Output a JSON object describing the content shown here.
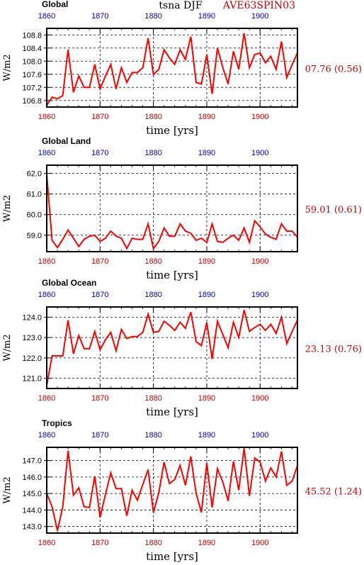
{
  "header": {
    "variable": "tsna DJF",
    "experiment": "AVE63SPIN03"
  },
  "colors": {
    "line": "#ff0000",
    "top_ticks": "#0000cc",
    "bottom_ticks": "#cc0000",
    "stat": "#cc0000",
    "axis": "#000000",
    "grid": "#000000"
  },
  "chart_data": [
    {
      "type": "line",
      "title": "Global",
      "ylabel": "W/m2",
      "xlabel": "time [yrs]",
      "stat": "07.76 (0.56)",
      "xlim": [
        1860,
        1907
      ],
      "ylim": [
        106.6,
        109.0
      ],
      "xticks": [
        1860,
        1870,
        1880,
        1890,
        1900
      ],
      "yticks": [
        106.8,
        107.2,
        107.6,
        108.0,
        108.4,
        108.8
      ],
      "ytick_labels": [
        "106.8",
        "107.2",
        "107.6",
        "108.0",
        "108.4",
        "108.8"
      ],
      "grid": true,
      "series": [
        {
          "x": [
            1860,
            1861,
            1862,
            1863,
            1864,
            1865,
            1866,
            1867,
            1868,
            1869,
            1870,
            1871,
            1872,
            1873,
            1874,
            1875,
            1876,
            1877,
            1878,
            1879,
            1880,
            1881,
            1882,
            1883,
            1884,
            1885,
            1886,
            1887,
            1888,
            1889,
            1890,
            1891,
            1892,
            1893,
            1894,
            1895,
            1896,
            1897,
            1898,
            1899,
            1900,
            1901,
            1902,
            1903,
            1904,
            1905,
            1906,
            1907
          ],
          "y": [
            106.65,
            106.9,
            106.85,
            106.95,
            108.35,
            107.05,
            107.55,
            107.2,
            107.2,
            107.9,
            107.15,
            107.55,
            107.9,
            107.15,
            107.8,
            107.35,
            107.65,
            107.65,
            107.8,
            108.7,
            107.6,
            107.75,
            108.35,
            108.1,
            107.9,
            108.35,
            108.05,
            108.75,
            107.35,
            107.3,
            108.2,
            107.0,
            108.4,
            107.8,
            107.3,
            108.3,
            107.75,
            108.85,
            107.8,
            108.2,
            108.25,
            107.95,
            108.15,
            107.75,
            108.6,
            107.5,
            107.9,
            108.25
          ]
        }
      ]
    },
    {
      "type": "line",
      "title": "Global Land",
      "ylabel": "W/m2",
      "xlabel": "time [yrs]",
      "stat": "59.01 (0.61)",
      "xlim": [
        1860,
        1907
      ],
      "ylim": [
        58.2,
        62.4
      ],
      "xticks": [
        1860,
        1870,
        1880,
        1890,
        1900
      ],
      "yticks": [
        59.0,
        60.0,
        61.0,
        62.0
      ],
      "ytick_labels": [
        "59.0",
        "60.0",
        "61.0",
        "62.0"
      ],
      "grid": true,
      "series": [
        {
          "x": [
            1860,
            1861,
            1862,
            1863,
            1864,
            1865,
            1866,
            1867,
            1868,
            1869,
            1870,
            1871,
            1872,
            1873,
            1874,
            1875,
            1876,
            1877,
            1878,
            1879,
            1880,
            1881,
            1882,
            1883,
            1884,
            1885,
            1886,
            1887,
            1888,
            1889,
            1890,
            1891,
            1892,
            1893,
            1894,
            1895,
            1896,
            1897,
            1898,
            1899,
            1900,
            1901,
            1902,
            1903,
            1904,
            1905,
            1906,
            1907
          ],
          "y": [
            61.95,
            58.75,
            58.4,
            58.8,
            59.25,
            58.85,
            58.45,
            58.8,
            58.95,
            59.0,
            58.7,
            58.85,
            59.2,
            58.95,
            58.85,
            58.35,
            58.85,
            58.8,
            58.8,
            59.55,
            58.35,
            58.7,
            59.35,
            58.95,
            58.95,
            59.55,
            59.2,
            59.1,
            58.75,
            58.85,
            58.65,
            59.55,
            58.7,
            58.65,
            58.85,
            59.0,
            58.75,
            59.35,
            58.65,
            59.7,
            59.4,
            59.05,
            58.9,
            58.8,
            59.55,
            59.2,
            59.2,
            58.9
          ]
        }
      ]
    },
    {
      "type": "line",
      "title": "Global Ocean",
      "ylabel": "W/m2",
      "xlabel": "time [yrs]",
      "stat": "23.13 (0.76)",
      "xlim": [
        1860,
        1907
      ],
      "ylim": [
        120.5,
        124.5
      ],
      "xticks": [
        1860,
        1870,
        1880,
        1890,
        1900
      ],
      "yticks": [
        121.0,
        122.0,
        123.0,
        124.0
      ],
      "ytick_labels": [
        "121.0",
        "122.0",
        "123.0",
        "124.0"
      ],
      "grid": true,
      "series": [
        {
          "x": [
            1860,
            1861,
            1862,
            1863,
            1864,
            1865,
            1866,
            1867,
            1868,
            1869,
            1870,
            1871,
            1872,
            1873,
            1874,
            1875,
            1876,
            1877,
            1878,
            1879,
            1880,
            1881,
            1882,
            1883,
            1884,
            1885,
            1886,
            1887,
            1888,
            1889,
            1890,
            1891,
            1892,
            1893,
            1894,
            1895,
            1896,
            1897,
            1898,
            1899,
            1900,
            1901,
            1902,
            1903,
            1904,
            1905,
            1906,
            1907
          ],
          "y": [
            120.65,
            122.1,
            122.1,
            122.1,
            123.85,
            122.2,
            123.1,
            122.45,
            122.45,
            123.3,
            122.4,
            122.9,
            123.25,
            122.35,
            123.4,
            122.95,
            123.05,
            123.05,
            123.25,
            124.15,
            123.25,
            123.3,
            123.8,
            123.6,
            123.35,
            123.75,
            123.45,
            124.25,
            122.8,
            122.6,
            123.75,
            121.95,
            123.8,
            123.15,
            122.5,
            123.75,
            123.0,
            124.35,
            123.3,
            123.5,
            123.65,
            123.35,
            123.65,
            123.2,
            124.0,
            122.7,
            123.3,
            123.85
          ]
        }
      ]
    },
    {
      "type": "line",
      "title": "Tropics",
      "ylabel": "W/m2",
      "xlabel": "time [yrs]",
      "stat": "45.52 (1.24)",
      "xlim": [
        1860,
        1907
      ],
      "ylim": [
        142.6,
        147.8
      ],
      "xticks": [
        1860,
        1870,
        1880,
        1890,
        1900
      ],
      "yticks": [
        143.0,
        144.0,
        145.0,
        146.0,
        147.0
      ],
      "ytick_labels": [
        "143.0",
        "144.0",
        "145.0",
        "146.0",
        "147.0"
      ],
      "grid": true,
      "series": [
        {
          "x": [
            1860,
            1861,
            1862,
            1863,
            1864,
            1865,
            1866,
            1867,
            1868,
            1869,
            1870,
            1871,
            1872,
            1873,
            1874,
            1875,
            1876,
            1877,
            1878,
            1879,
            1880,
            1881,
            1882,
            1883,
            1884,
            1885,
            1886,
            1887,
            1888,
            1889,
            1890,
            1891,
            1892,
            1893,
            1894,
            1895,
            1896,
            1897,
            1898,
            1899,
            1900,
            1901,
            1902,
            1903,
            1904,
            1905,
            1906,
            1907
          ],
          "y": [
            145.0,
            144.2,
            142.75,
            144.2,
            147.6,
            144.9,
            145.35,
            144.2,
            144.15,
            146.05,
            143.55,
            144.95,
            146.25,
            145.3,
            145.3,
            143.65,
            145.2,
            144.6,
            145.55,
            146.45,
            143.85,
            145.05,
            146.9,
            145.6,
            145.85,
            146.7,
            145.5,
            147.25,
            145.0,
            143.85,
            146.85,
            144.15,
            146.5,
            145.7,
            144.55,
            146.95,
            145.2,
            147.75,
            144.85,
            147.15,
            146.9,
            145.75,
            146.55,
            146.0,
            147.55,
            145.5,
            145.75,
            146.7
          ]
        }
      ]
    }
  ]
}
